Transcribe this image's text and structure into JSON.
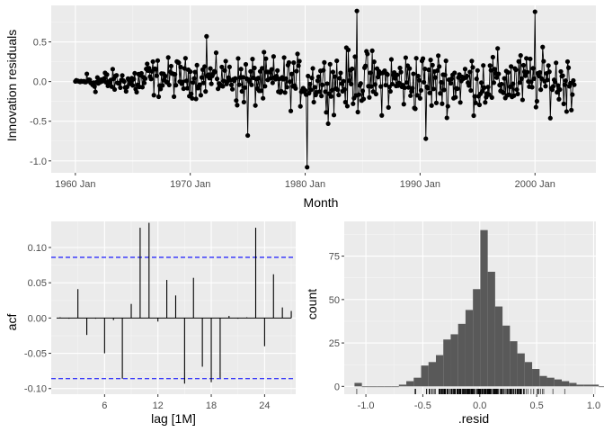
{
  "chart_data": [
    {
      "type": "line",
      "panel": "innovation-residuals",
      "xlabel": "Month",
      "ylabel": "Innovation residuals",
      "x_ticks": [
        "1960 Jan",
        "1970 Jan",
        "1980 Jan",
        "1990 Jan",
        "2000 Jan"
      ],
      "x_tick_years": [
        1960,
        1970,
        1980,
        1990,
        2000
      ],
      "y_ticks": [
        "0.5",
        "0.0",
        "-0.5",
        "-1.0"
      ],
      "y_tick_values": [
        0.5,
        0.0,
        -0.5,
        -1.0
      ],
      "xlim": [
        1957.9,
        2005.3
      ],
      "ylim": [
        -1.15,
        0.96
      ],
      "start": "1960 Jan",
      "end": "2003 Jun",
      "points_style": "line with points",
      "notable_points": [
        {
          "x": "1980 Mar",
          "y": -1.08
        },
        {
          "x": "1984 Jul",
          "y": 0.89
        },
        {
          "x": "2000 Jan",
          "y": 0.88
        },
        {
          "x": "1975 Jan",
          "y": -0.68
        },
        {
          "x": "1990 Jul",
          "y": -0.72
        },
        {
          "x": "1971 Jun",
          "y": 0.57
        }
      ],
      "residual_amplitude": [
        {
          "from": 1960.0,
          "to": 1961.0,
          "amp": 0.02
        },
        {
          "from": 1961.0,
          "to": 1965.0,
          "amp": 0.15
        },
        {
          "from": 1965.0,
          "to": 1974.0,
          "amp": 0.25
        },
        {
          "from": 1974.0,
          "to": 1982.0,
          "amp": 0.33
        },
        {
          "from": 1982.0,
          "to": 1992.0,
          "amp": 0.4
        },
        {
          "from": 1992.0,
          "to": 2003.5,
          "amp": 0.38
        }
      ]
    },
    {
      "type": "bar",
      "panel": "acf",
      "xlabel": "lag [1M]",
      "ylabel": "acf",
      "x_ticks": [
        "6",
        "12",
        "18",
        "24"
      ],
      "x_tick_values": [
        6,
        12,
        18,
        24
      ],
      "y_ticks": [
        "0.10",
        "0.05",
        "0.00",
        "-0.05",
        "-0.10"
      ],
      "y_tick_values": [
        0.1,
        0.05,
        0.0,
        -0.05,
        -0.1
      ],
      "xlim": [
        0.0,
        27.5
      ],
      "ylim": [
        -0.108,
        0.137
      ],
      "lags": [
        1,
        2,
        3,
        4,
        5,
        6,
        7,
        8,
        9,
        10,
        11,
        12,
        13,
        14,
        15,
        16,
        17,
        18,
        19,
        20,
        21,
        22,
        23,
        24,
        25,
        26,
        27
      ],
      "values": [
        0.001,
        -0.001,
        0.041,
        -0.024,
        -0.001,
        -0.05,
        -0.003,
        -0.086,
        0.02,
        0.128,
        0.135,
        -0.005,
        0.054,
        0.032,
        -0.093,
        0.057,
        -0.069,
        -0.091,
        -0.085,
        0.003,
        -0.001,
        0.001,
        0.128,
        -0.04,
        0.062,
        0.015,
        0.01
      ],
      "confidence_bounds": [
        0.086,
        -0.086
      ],
      "bound_style": "blue dashed"
    },
    {
      "type": "bar",
      "panel": "residual-histogram",
      "xlabel": ".resid",
      "ylabel": "count",
      "x_ticks": [
        "-1.0",
        "-0.5",
        "0.0",
        "0.5",
        "1.0"
      ],
      "x_tick_values": [
        -1.0,
        -0.5,
        0.0,
        0.5,
        1.0
      ],
      "y_ticks": [
        "75",
        "50",
        "25",
        "0"
      ],
      "y_tick_values": [
        75,
        50,
        25,
        0
      ],
      "xlim": [
        -1.19,
        1.02
      ],
      "ylim": [
        -4.5,
        95
      ],
      "bin_width": 0.065,
      "bin_start": -1.1,
      "counts": [
        2,
        0,
        0,
        0,
        0,
        0,
        1,
        3,
        5,
        12,
        14,
        18,
        27,
        30,
        36,
        44,
        56,
        90,
        66,
        46,
        35,
        26,
        19,
        14,
        10,
        6,
        5,
        4,
        3,
        2,
        1,
        1,
        1,
        0
      ],
      "rug": "residual values along x-axis"
    }
  ]
}
